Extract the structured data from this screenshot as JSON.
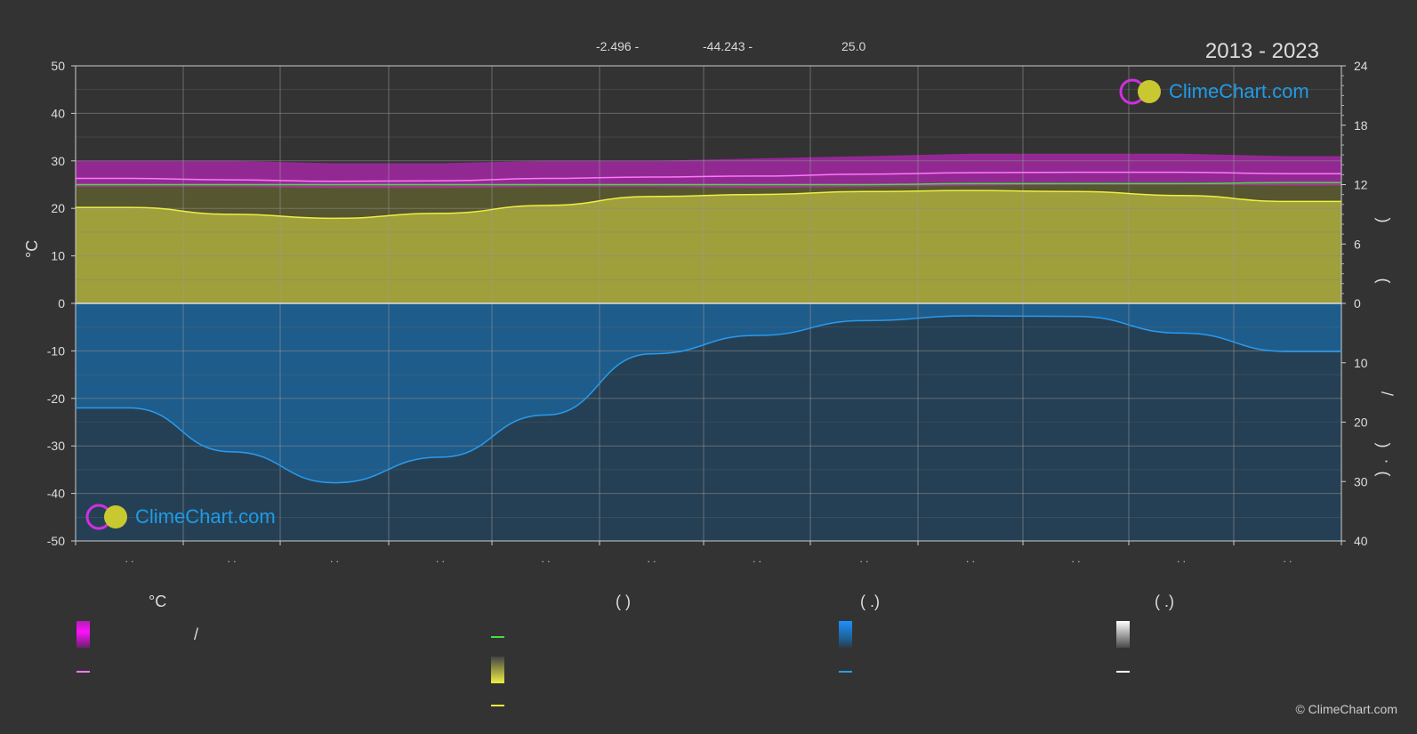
{
  "header": {
    "lat": "-2.496 -",
    "lon": "-44.243 -",
    "elev": "25.0",
    "years": "2013 - 2023"
  },
  "axes": {
    "left_unit": "°C",
    "left_ticks": [
      "50",
      "40",
      "30",
      "20",
      "10",
      "0",
      "-10",
      "-20",
      "-30",
      "-40",
      "-50"
    ],
    "right_top_ticks": [
      "24",
      "18",
      "12",
      "6",
      "0"
    ],
    "right_bottom_ticks": [
      "10",
      "20",
      "30",
      "40"
    ],
    "right_upper_label_glyphs": [
      "(",
      ")"
    ],
    "right_lower_label_glyphs": [
      "/",
      "(",
      "·",
      ")"
    ],
    "month_tick_text": ". ."
  },
  "logo": {
    "text": "ClimeChart.com"
  },
  "legend": {
    "head_temp": "°C",
    "head_sun": "(          )",
    "head_rain": "(   .)",
    "head_snow": "(   .)",
    "slash": "/"
  },
  "copyright": "© ClimeChart.com",
  "colors": {
    "background": "#333333",
    "temp_band": "#e020e0",
    "temp_line": "#ff77ff",
    "daylight_line": "#44dd44",
    "sunshine_fill": "#b8b840",
    "sunshine_line": "#eeee44",
    "rain_fill": "#1a6fb0",
    "rain_line": "#2a9aee",
    "snow": "#ffffff"
  },
  "chart_data": {
    "type": "area",
    "months": 12,
    "left_axis": {
      "unit": "°C",
      "ylim": [
        -50,
        50
      ]
    },
    "right_axis_upper": {
      "ylim": [
        0,
        24
      ]
    },
    "right_axis_lower": {
      "ylim": [
        0,
        40
      ]
    },
    "series": [
      {
        "key": "temp_max",
        "values": [
          30,
          30,
          29.5,
          29.5,
          30,
          30,
          30.5,
          31,
          31.5,
          31.5,
          31.5,
          31
        ]
      },
      {
        "key": "temp_mean",
        "values": [
          26.3,
          26.0,
          25.7,
          25.8,
          26.3,
          26.6,
          26.8,
          27.2,
          27.5,
          27.6,
          27.6,
          27.3
        ]
      },
      {
        "key": "temp_min",
        "values": [
          24.5,
          24.5,
          24.3,
          24.3,
          24.5,
          24.5,
          24.3,
          24.5,
          24.8,
          25,
          25,
          24.8
        ]
      },
      {
        "key": "daylight_hours",
        "values": [
          12.0,
          12.0,
          12.0,
          12.0,
          12.0,
          12.0,
          12.0,
          12.0,
          12.1,
          12.1,
          12.1,
          12.2
        ]
      },
      {
        "key": "sunshine_hours",
        "values": [
          9.7,
          9.0,
          8.6,
          9.1,
          9.9,
          10.8,
          11.0,
          11.3,
          11.4,
          11.3,
          10.9,
          10.3
        ]
      },
      {
        "key": "rain_mm_per_day",
        "values": [
          17.6,
          25.0,
          30.2,
          25.9,
          18.8,
          8.5,
          5.4,
          2.9,
          2.1,
          2.2,
          5.0,
          8.1
        ]
      }
    ]
  }
}
